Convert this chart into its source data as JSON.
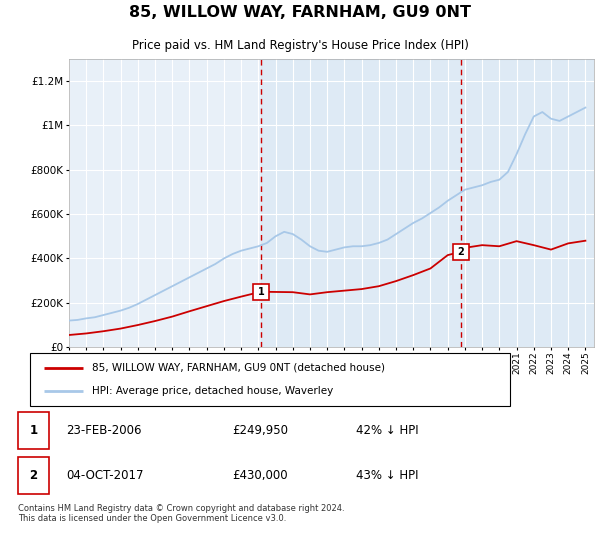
{
  "title": "85, WILLOW WAY, FARNHAM, GU9 0NT",
  "subtitle": "Price paid vs. HM Land Registry's House Price Index (HPI)",
  "legend_line1": "85, WILLOW WAY, FARNHAM, GU9 0NT (detached house)",
  "legend_line2": "HPI: Average price, detached house, Waverley",
  "footnote": "Contains HM Land Registry data © Crown copyright and database right 2024.\nThis data is licensed under the Open Government Licence v3.0.",
  "transaction1_date": "23-FEB-2006",
  "transaction1_price": "£249,950",
  "transaction1_hpi": "42% ↓ HPI",
  "transaction1_year": 2006.15,
  "transaction1_value": 249950,
  "transaction2_date": "04-OCT-2017",
  "transaction2_price": "£430,000",
  "transaction2_hpi": "43% ↓ HPI",
  "transaction2_year": 2017.75,
  "transaction2_value": 430000,
  "hpi_color": "#a8c8e8",
  "price_color": "#cc0000",
  "vline_color": "#cc0000",
  "shade_color": "#ccdff0",
  "plot_bg": "#e8f0f8",
  "ylim": [
    0,
    1300000
  ],
  "xlim_start": 1995.0,
  "xlim_end": 2025.5,
  "hpi_years": [
    1995,
    1995.5,
    1996,
    1996.5,
    1997,
    1997.5,
    1998,
    1998.5,
    1999,
    1999.5,
    2000,
    2000.5,
    2001,
    2001.5,
    2002,
    2002.5,
    2003,
    2003.5,
    2004,
    2004.5,
    2005,
    2005.5,
    2006,
    2006.5,
    2007,
    2007.5,
    2008,
    2008.5,
    2009,
    2009.5,
    2010,
    2010.5,
    2011,
    2011.5,
    2012,
    2012.5,
    2013,
    2013.5,
    2014,
    2014.5,
    2015,
    2015.5,
    2016,
    2016.5,
    2017,
    2017.5,
    2018,
    2018.5,
    2019,
    2019.5,
    2020,
    2020.5,
    2021,
    2021.5,
    2022,
    2022.5,
    2023,
    2023.5,
    2024,
    2024.5,
    2025
  ],
  "hpi_values": [
    120000,
    123000,
    130000,
    135000,
    145000,
    155000,
    165000,
    178000,
    195000,
    215000,
    235000,
    255000,
    275000,
    295000,
    315000,
    335000,
    355000,
    375000,
    400000,
    420000,
    435000,
    445000,
    455000,
    470000,
    500000,
    520000,
    510000,
    485000,
    455000,
    435000,
    430000,
    440000,
    450000,
    455000,
    455000,
    460000,
    470000,
    485000,
    510000,
    535000,
    560000,
    580000,
    605000,
    630000,
    660000,
    685000,
    710000,
    720000,
    730000,
    745000,
    755000,
    790000,
    870000,
    960000,
    1040000,
    1060000,
    1030000,
    1020000,
    1040000,
    1060000,
    1080000
  ],
  "price_years": [
    1995,
    1996,
    1997,
    1998,
    1999,
    2000,
    2001,
    2002,
    2003,
    2004,
    2005,
    2006.15,
    2008,
    2009,
    2010,
    2011,
    2012,
    2013,
    2014,
    2015,
    2016,
    2017.0,
    2017.75,
    2018,
    2019,
    2020,
    2021,
    2022,
    2023,
    2024,
    2025
  ],
  "price_values": [
    55000,
    62000,
    72000,
    84000,
    100000,
    118000,
    138000,
    162000,
    185000,
    208000,
    228000,
    249950,
    248000,
    238000,
    248000,
    255000,
    262000,
    275000,
    298000,
    325000,
    355000,
    415000,
    430000,
    448000,
    460000,
    455000,
    478000,
    460000,
    440000,
    468000,
    480000
  ]
}
